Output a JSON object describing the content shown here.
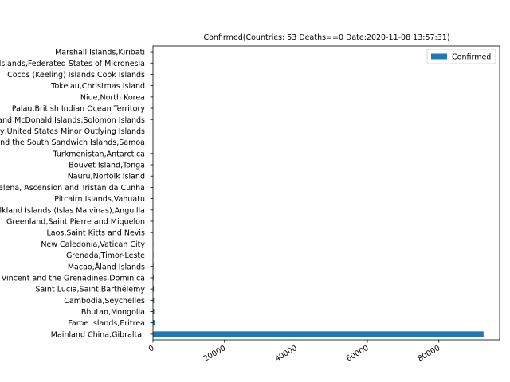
{
  "chart_data": {
    "type": "bar",
    "orientation": "horizontal",
    "title": "Confirmed(Countries: 53 Deaths==0 Date:2020-11-08 13:57:31)",
    "xlabel": "",
    "ylabel": "",
    "xlim": [
      0,
      97000
    ],
    "x_ticks": [
      0,
      20000,
      40000,
      60000,
      80000
    ],
    "x_tick_labels": [
      "0",
      "20000",
      "40000",
      "60000",
      "80000"
    ],
    "grid": false,
    "legend_position": "top-right",
    "categories": [
      "Mainland China,Gibraltar",
      "Faroe Islands,Eritrea",
      "Bhutan,Mongolia",
      "Cambodia,Seychelles",
      "Saint Lucia,Saint Barthélemy",
      "Saint Vincent and the Grenadines,Dominica",
      "Macao,Åland Islands",
      "Grenada,Timor-Leste",
      "New Caledonia,Vatican City",
      "Laos,Saint Kitts and Nevis",
      "Greenland,Saint Pierre and Miquelon",
      "Falkland Islands (Islas Malvinas),Anguilla",
      "Pitcairn Islands,Vanuatu",
      "Saint Helena, Ascension and Tristan da Cunha",
      "Nauru,Norfolk Island",
      "Bouvet Island,Tonga",
      "Turkmenistan,Antarctica",
      "South Georgia and the South Sandwich Islands,Samoa",
      "Jersey,United States Minor Outlying Islands",
      "Heard Island and McDonald Islands,Solomon Islands",
      "Palau,British Indian Ocean Territory",
      "Niue,North Korea",
      "Tokelau,Christmas Island",
      "Cocos (Keeling) Islands,Cook Islands",
      "Marshall Islands,Federated States of Micronesia",
      "Marshall Islands,Kiribati"
    ],
    "series": [
      {
        "name": "Confirmed",
        "color": "#1f77b4",
        "values": [
          92500,
          500,
          350,
          300,
          250,
          200,
          150,
          120,
          100,
          80,
          60,
          50,
          40,
          30,
          20,
          15,
          10,
          8,
          6,
          5,
          4,
          3,
          2,
          1,
          1,
          0
        ]
      }
    ]
  }
}
